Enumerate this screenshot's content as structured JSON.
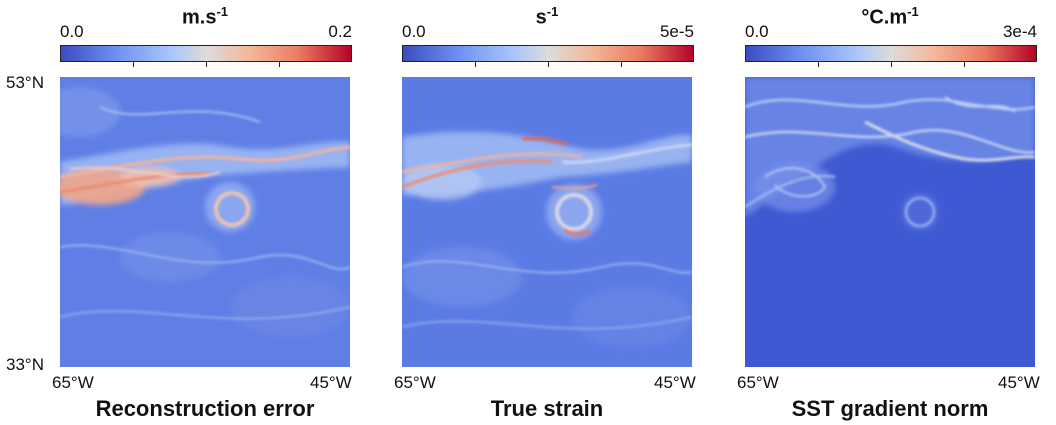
{
  "panels": [
    {
      "title": "Reconstruction error",
      "unit_base": "m.s",
      "unit_exp": "-1",
      "cb_min": "0.0",
      "cb_max": "0.2"
    },
    {
      "title": "True strain",
      "unit_base": "s",
      "unit_exp": "-1",
      "cb_min": "0.0",
      "cb_max": "5e-5"
    },
    {
      "title": "SST gradient norm",
      "unit_base": "°C.m",
      "unit_exp": "-1",
      "cb_min": "0.0",
      "cb_max": "3e-4"
    }
  ],
  "axes": {
    "lat_top": "53°N",
    "lat_bottom": "33°N",
    "lon_left": "65°W",
    "lon_right": "45°W"
  },
  "colormap": {
    "low": "#3b4cc0",
    "mid": "#dcdcdc",
    "high": "#b40426"
  }
}
